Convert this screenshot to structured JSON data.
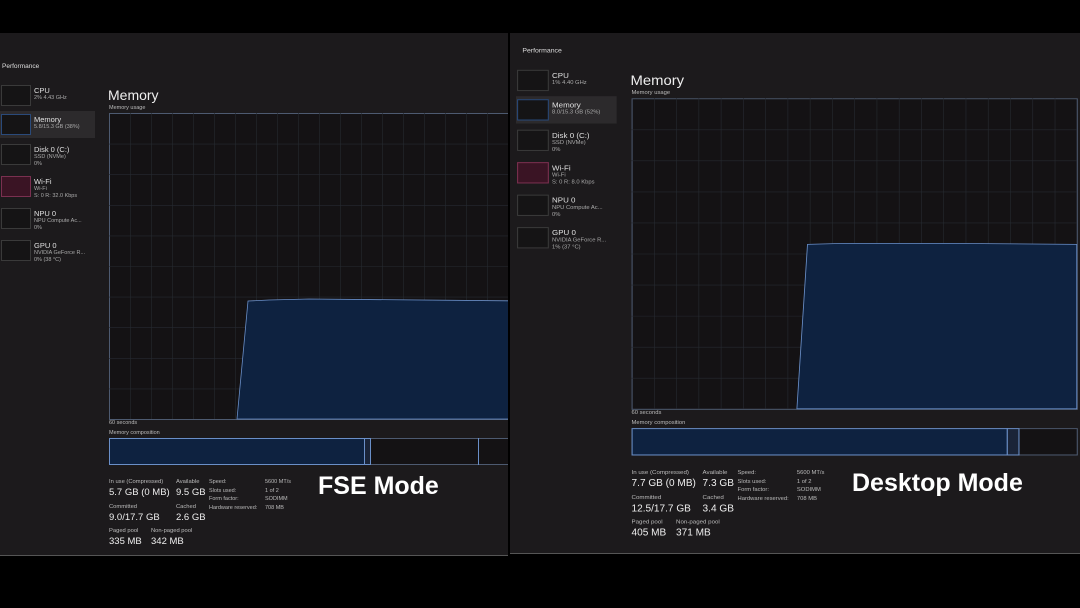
{
  "panels": [
    {
      "header": "Performance",
      "sidebar": [
        {
          "name": "CPU",
          "details": [
            "2% 4.43 GHz"
          ]
        },
        {
          "name": "Memory",
          "details": [
            "5.8/15.3 GB (38%)"
          ]
        },
        {
          "name": "Disk 0 (C:)",
          "details": [
            "SSD (NVMe)",
            "0%"
          ]
        },
        {
          "name": "Wi-Fi",
          "details": [
            "Wi-Fi",
            "S: 0 R: 32.0 Kbps"
          ]
        },
        {
          "name": "NPU 0",
          "details": [
            "NPU Compute Ac...",
            "0%"
          ]
        },
        {
          "name": "GPU 0",
          "details": [
            "NVIDIA GeForce R...",
            "0% (38 °C)"
          ]
        }
      ],
      "title": "Memory",
      "usage_label": "Memory usage",
      "time_label": "60 seconds",
      "composition_label": "Memory composition",
      "stats": [
        {
          "label": "In use (Compressed)",
          "value": "5.7 GB (0 MB)"
        },
        {
          "label": "Available",
          "value": "9.5 GB"
        },
        {
          "label": "Committed",
          "value": "9.0/17.7 GB"
        },
        {
          "label": "Cached",
          "value": "2.6 GB"
        },
        {
          "label": "Paged pool",
          "value": "335 MB"
        },
        {
          "label": "Non-paged pool",
          "value": "342 MB"
        }
      ],
      "specs": [
        {
          "label": "Speed:",
          "value": "5600 MT/s"
        },
        {
          "label": "Slots used:",
          "value": "1 of 2"
        },
        {
          "label": "Form factor:",
          "value": "SODIMM"
        },
        {
          "label": "Hardware reserved:",
          "value": "708 MB"
        }
      ],
      "caption": "FSE Mode"
    },
    {
      "header": "Performance",
      "sidebar": [
        {
          "name": "CPU",
          "details": [
            "1% 4.40 GHz"
          ]
        },
        {
          "name": "Memory",
          "details": [
            "8.0/15.3 GB (52%)"
          ]
        },
        {
          "name": "Disk 0 (C:)",
          "details": [
            "SSD (NVMe)",
            "0%"
          ]
        },
        {
          "name": "Wi-Fi",
          "details": [
            "Wi-Fi",
            "S: 0 R: 8.0 Kbps"
          ]
        },
        {
          "name": "NPU 0",
          "details": [
            "NPU Compute Ac...",
            "0%"
          ]
        },
        {
          "name": "GPU 0",
          "details": [
            "NVIDIA GeForce R...",
            "1% (37 °C)"
          ]
        }
      ],
      "title": "Memory",
      "usage_label": "Memory usage",
      "time_label": "60 seconds",
      "composition_label": "Memory composition",
      "stats": [
        {
          "label": "In use (Compressed)",
          "value": "7.7 GB (0 MB)"
        },
        {
          "label": "Available",
          "value": "7.3 GB"
        },
        {
          "label": "Committed",
          "value": "12.5/17.7 GB"
        },
        {
          "label": "Cached",
          "value": "3.4 GB"
        },
        {
          "label": "Paged pool",
          "value": "405 MB"
        },
        {
          "label": "Non-paged pool",
          "value": "371 MB"
        }
      ],
      "specs": [
        {
          "label": "Speed:",
          "value": "5600 MT/s"
        },
        {
          "label": "Slots used:",
          "value": "1 of 2"
        },
        {
          "label": "Form factor:",
          "value": "SODIMM"
        },
        {
          "label": "Hardware reserved:",
          "value": "708 MB"
        }
      ],
      "caption": "Desktop Mode"
    }
  ]
}
